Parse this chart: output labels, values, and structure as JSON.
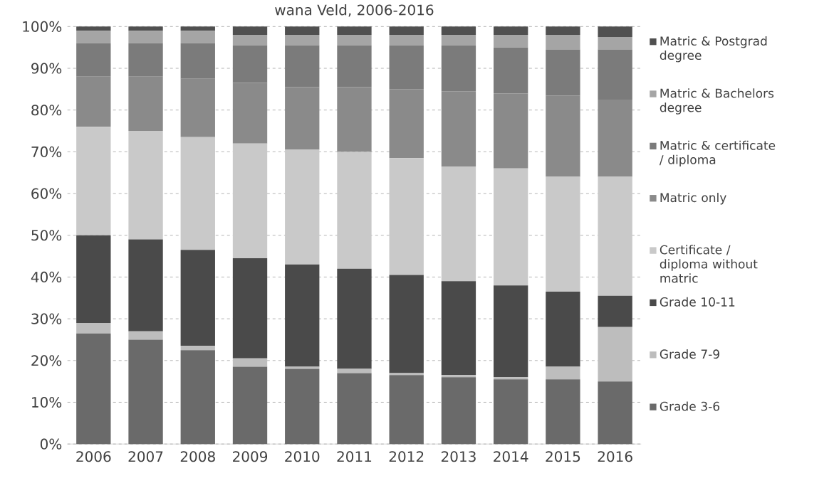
{
  "chart_data": {
    "type": "bar",
    "stacked": true,
    "title": "wana Veld, 2006-2016",
    "categories": [
      "2006",
      "2007",
      "2008",
      "2009",
      "2010",
      "2011",
      "2012",
      "2013",
      "2014",
      "2015",
      "2016"
    ],
    "series": [
      {
        "name": "Grade 3-6",
        "color": "#6a6a6a",
        "values": [
          26.5,
          25,
          22.5,
          18.5,
          18,
          17,
          16.5,
          16,
          15.5,
          15.5,
          15
        ]
      },
      {
        "name": "Grade 7-9",
        "color": "#bdbdbd",
        "values": [
          2.5,
          2,
          1,
          2,
          0.5,
          1,
          0.5,
          0.5,
          0.5,
          3,
          13
        ]
      },
      {
        "name": "Grade 10-11",
        "color": "#4a4a4a",
        "values": [
          21,
          22,
          23,
          24,
          24.5,
          24,
          23.5,
          22.5,
          22,
          18,
          7.5
        ]
      },
      {
        "name": "Certificate / diploma without matric",
        "color": "#c9c9c9",
        "values": [
          26,
          26,
          27,
          27.5,
          27.5,
          28,
          28,
          27.5,
          28,
          27.5,
          28.5
        ]
      },
      {
        "name": "Matric only",
        "color": "#8a8a8a",
        "values": [
          12,
          13,
          14,
          14.5,
          15,
          15.5,
          16.5,
          18,
          18,
          19.5,
          18.5
        ]
      },
      {
        "name": "Matric & certificate / diploma",
        "color": "#7b7b7b",
        "values": [
          8,
          8,
          8.5,
          9,
          10,
          10,
          10.5,
          11,
          11,
          11,
          12
        ]
      },
      {
        "name": "Matric & Bachelors degree",
        "color": "#a5a5a5",
        "values": [
          3,
          3,
          3,
          2.5,
          2.5,
          2.5,
          2.5,
          2.5,
          3,
          3.5,
          3
        ]
      },
      {
        "name": "Matric & Postgrad degree",
        "color": "#505050",
        "values": [
          1,
          1,
          1,
          2,
          2,
          2,
          2,
          2,
          2,
          2,
          2.5
        ]
      }
    ],
    "ylim": [
      0,
      100
    ],
    "yticks": [
      {
        "value": 0,
        "label": "0%"
      },
      {
        "value": 10,
        "label": "10%"
      },
      {
        "value": 20,
        "label": "20%"
      },
      {
        "value": 30,
        "label": "30%"
      },
      {
        "value": 40,
        "label": "40%"
      },
      {
        "value": 50,
        "label": "50%"
      },
      {
        "value": 60,
        "label": "60%"
      },
      {
        "value": 70,
        "label": "70%"
      },
      {
        "value": 80,
        "label": "80%"
      },
      {
        "value": 90,
        "label": "90%"
      },
      {
        "value": 100,
        "label": "100%"
      }
    ],
    "grid": "y",
    "legend": "right"
  }
}
